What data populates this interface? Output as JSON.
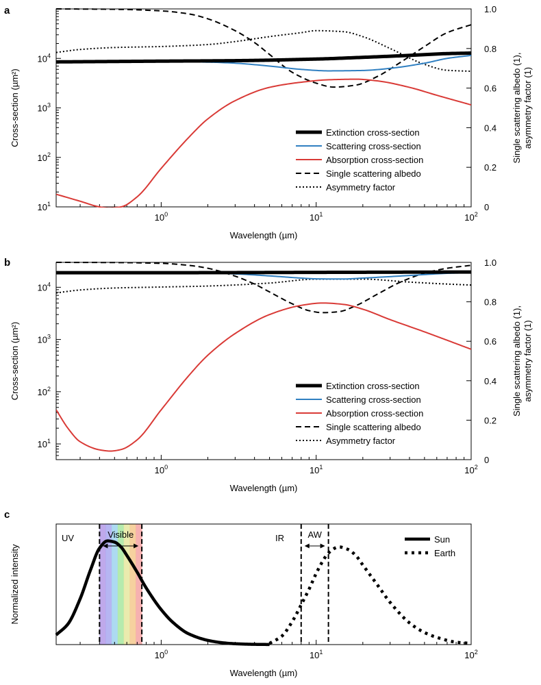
{
  "chart_data": [
    {
      "panel": "a",
      "type": "line",
      "xscale": "log",
      "xlim": [
        0.21,
        100
      ],
      "x_ticks": [
        {
          "base": "10",
          "exp": "0"
        },
        {
          "base": "10",
          "exp": "1"
        },
        {
          "base": "10",
          "exp": "2"
        }
      ],
      "xlabel": "Wavelength (µm)",
      "ylabel_left": "Cross-section (µm²)",
      "ylabel_right_1": "Single scattering albedo (1),",
      "ylabel_right_2": "asymmetry factor (1)",
      "y_left": {
        "scale": "log",
        "lim": [
          10,
          100000
        ],
        "ticks": [
          {
            "base": "10",
            "exp": "1"
          },
          {
            "base": "10",
            "exp": "2"
          },
          {
            "base": "10",
            "exp": "3"
          },
          {
            "base": "10",
            "exp": "4"
          }
        ]
      },
      "y_right": {
        "scale": "linear",
        "lim": [
          0,
          1.0
        ],
        "ticks": [
          "0",
          "0.2",
          "0.4",
          "0.6",
          "0.8",
          "1.0"
        ]
      },
      "legend": [
        {
          "label": "Extinction cross-section",
          "style": "thick"
        },
        {
          "label": "Scattering cross-section",
          "style": "blue"
        },
        {
          "label": "Absorption cross-section",
          "style": "red"
        },
        {
          "label": "Single scattering albedo",
          "style": "dashed"
        },
        {
          "label": "Asymmetry factor",
          "style": "dotted"
        }
      ],
      "series": [
        {
          "name": "Extinction cross-section",
          "axis": "left",
          "x": [
            0.21,
            1,
            3,
            10,
            20,
            40,
            70,
            100
          ],
          "y": [
            8500,
            8800,
            9000,
            9700,
            10500,
            11500,
            12500,
            12800
          ]
        },
        {
          "name": "Scattering cross-section",
          "axis": "left",
          "x": [
            0.21,
            0.5,
            1,
            2,
            3,
            5,
            8,
            12,
            20,
            30,
            50,
            70,
            100
          ],
          "y": [
            8400,
            8500,
            8600,
            8400,
            8000,
            7000,
            6000,
            5600,
            5700,
            6300,
            8000,
            10000,
            11500
          ]
        },
        {
          "name": "Absorption cross-section",
          "axis": "left",
          "x": [
            0.21,
            0.3,
            0.4,
            0.46,
            0.55,
            0.7,
            1,
            1.5,
            2,
            3,
            5,
            8,
            12,
            18,
            25,
            40,
            60,
            100
          ],
          "y": [
            18,
            13,
            10,
            9.5,
            10,
            16,
            60,
            250,
            600,
            1400,
            2600,
            3300,
            3700,
            3800,
            3500,
            2600,
            1800,
            1150
          ]
        },
        {
          "name": "Single scattering albedo",
          "axis": "right",
          "x": [
            0.21,
            0.5,
            1,
            1.5,
            2,
            3,
            4,
            5,
            7,
            10,
            13,
            18,
            25,
            35,
            50,
            70,
            100
          ],
          "y": [
            1.0,
            0.998,
            0.99,
            0.975,
            0.95,
            0.89,
            0.83,
            0.77,
            0.68,
            0.625,
            0.605,
            0.615,
            0.66,
            0.73,
            0.81,
            0.88,
            0.92
          ]
        },
        {
          "name": "Asymmetry factor",
          "axis": "right",
          "x": [
            0.21,
            0.3,
            0.5,
            1,
            2,
            3,
            5,
            8,
            10,
            15,
            20,
            30,
            50,
            70,
            100
          ],
          "y": [
            0.78,
            0.795,
            0.805,
            0.81,
            0.82,
            0.835,
            0.86,
            0.88,
            0.89,
            0.885,
            0.86,
            0.8,
            0.72,
            0.69,
            0.685
          ]
        }
      ]
    },
    {
      "panel": "b",
      "type": "line",
      "xscale": "log",
      "xlim": [
        0.21,
        100
      ],
      "x_ticks": [
        {
          "base": "10",
          "exp": "0"
        },
        {
          "base": "10",
          "exp": "1"
        },
        {
          "base": "10",
          "exp": "2"
        }
      ],
      "xlabel": "Wavelength (µm)",
      "ylabel_left": "Cross-section (µm²)",
      "ylabel_right_1": "Single scattering albedo (1),",
      "ylabel_right_2": "asymmetry factor (1)",
      "y_left": {
        "scale": "log",
        "lim": [
          5,
          30000
        ],
        "ticks": [
          {
            "base": "10",
            "exp": "1"
          },
          {
            "base": "10",
            "exp": "2"
          },
          {
            "base": "10",
            "exp": "3"
          },
          {
            "base": "10",
            "exp": "4"
          }
        ]
      },
      "y_right": {
        "scale": "linear",
        "lim": [
          0,
          1.0
        ],
        "ticks": [
          "0",
          "0.2",
          "0.4",
          "0.6",
          "0.8",
          "1.0"
        ]
      },
      "legend": [
        {
          "label": "Extinction cross-section",
          "style": "thick"
        },
        {
          "label": "Scattering cross-section",
          "style": "blue"
        },
        {
          "label": "Absorption cross-section",
          "style": "red"
        },
        {
          "label": "Single scattering albedo",
          "style": "dashed"
        },
        {
          "label": "Asymmetry factor",
          "style": "dotted"
        }
      ],
      "series": [
        {
          "name": "Extinction cross-section",
          "axis": "left",
          "x": [
            0.21,
            1,
            10,
            100
          ],
          "y": [
            19000,
            19000,
            19300,
            19600
          ]
        },
        {
          "name": "Scattering cross-section",
          "axis": "left",
          "x": [
            0.21,
            1,
            2,
            3,
            5,
            8,
            10,
            15,
            20,
            30,
            50,
            70,
            100
          ],
          "y": [
            18800,
            18800,
            18600,
            18000,
            16500,
            15000,
            14500,
            14400,
            15000,
            16000,
            17500,
            18500,
            19000
          ]
        },
        {
          "name": "Absorption cross-section",
          "axis": "left",
          "x": [
            0.21,
            0.25,
            0.3,
            0.4,
            0.47,
            0.55,
            0.7,
            1,
            1.5,
            2,
            3,
            5,
            8,
            11,
            15,
            20,
            30,
            50,
            100
          ],
          "y": [
            45,
            20,
            11,
            7.7,
            7.3,
            7.8,
            12,
            45,
            200,
            500,
            1300,
            3000,
            4500,
            5000,
            4700,
            3800,
            2400,
            1400,
            650
          ]
        },
        {
          "name": "Single scattering albedo",
          "axis": "right",
          "x": [
            0.21,
            0.5,
            1,
            1.5,
            2,
            3,
            4,
            5,
            7,
            9,
            11,
            14,
            18,
            25,
            35,
            50,
            70,
            100
          ],
          "y": [
            1.0,
            0.999,
            0.995,
            0.985,
            0.97,
            0.93,
            0.89,
            0.85,
            0.79,
            0.755,
            0.745,
            0.75,
            0.78,
            0.84,
            0.9,
            0.945,
            0.97,
            0.985
          ]
        },
        {
          "name": "Asymmetry factor",
          "axis": "right",
          "x": [
            0.21,
            0.3,
            0.5,
            1,
            2,
            5,
            10,
            20,
            40,
            70,
            100
          ],
          "y": [
            0.845,
            0.86,
            0.87,
            0.875,
            0.88,
            0.895,
            0.915,
            0.915,
            0.9,
            0.89,
            0.885
          ]
        }
      ]
    },
    {
      "panel": "c",
      "type": "line",
      "xscale": "log",
      "xlim": [
        0.21,
        100
      ],
      "x_ticks": [
        {
          "base": "10",
          "exp": "0"
        },
        {
          "base": "10",
          "exp": "1"
        },
        {
          "base": "10",
          "exp": "2"
        }
      ],
      "xlabel": "Wavelength (µm)",
      "ylabel": "Normalized intensity",
      "ylim": [
        0,
        1.0
      ],
      "annotations": {
        "uv": "UV",
        "visible": "Visible",
        "ir": "IR",
        "aw": "AW"
      },
      "visible_band_um": [
        0.4,
        0.75
      ],
      "visible_colors": [
        "#b49ae8",
        "#a9a8f0",
        "#9fd3ee",
        "#a8e8a0",
        "#e6e8a0",
        "#f5c98e",
        "#f4a3a3"
      ],
      "atmospheric_window_um": [
        8,
        12
      ],
      "legend": [
        {
          "label": "Sun",
          "style": "solid"
        },
        {
          "label": "Earth",
          "style": "dotted"
        }
      ],
      "series": [
        {
          "name": "Sun",
          "x": [
            0.21,
            0.25,
            0.3,
            0.35,
            0.4,
            0.45,
            0.5,
            0.55,
            0.6,
            0.7,
            0.8,
            1.0,
            1.2,
            1.5,
            2,
            2.5,
            3,
            4,
            5
          ],
          "y": [
            0.08,
            0.17,
            0.38,
            0.62,
            0.8,
            0.86,
            0.85,
            0.81,
            0.74,
            0.6,
            0.47,
            0.29,
            0.18,
            0.09,
            0.035,
            0.015,
            0.007,
            0.002,
            0.0008
          ]
        },
        {
          "name": "Earth",
          "x": [
            5,
            6,
            7,
            8,
            9,
            10,
            11,
            12,
            14,
            16,
            18,
            20,
            25,
            30,
            40,
            50,
            60,
            80,
            100
          ],
          "y": [
            0.01,
            0.07,
            0.19,
            0.33,
            0.46,
            0.59,
            0.69,
            0.76,
            0.81,
            0.79,
            0.74,
            0.66,
            0.49,
            0.35,
            0.18,
            0.1,
            0.06,
            0.02,
            0.01
          ]
        }
      ]
    }
  ]
}
